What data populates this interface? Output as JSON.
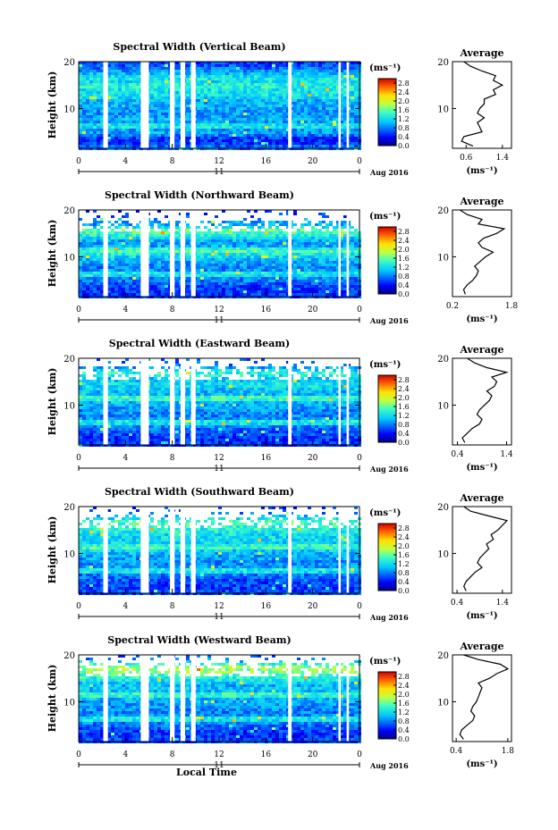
{
  "chart_data": [
    {
      "type": "heatmap",
      "title": "Spectral Width (Vertical Beam)",
      "ylabel": "Height (km)",
      "xticks": [
        "0",
        "4",
        "8",
        "12",
        "16",
        "20",
        "0"
      ],
      "yticks": [
        "20",
        "10"
      ],
      "date_day": "11",
      "date_label": "Aug 2016",
      "colorbar": {
        "unit": "(ms⁻¹)",
        "ticks": [
          "2.8",
          "2.4",
          "2.0",
          "1.6",
          "1.2",
          "0.8",
          "0.4",
          "0.0"
        ],
        "range": [
          0.0,
          3.0
        ]
      },
      "xlim": [
        0,
        24
      ],
      "ylim": [
        1.5,
        20
      ],
      "data_gaps_hours": [
        [
          2.1,
          2.5
        ],
        [
          5.3,
          6.0
        ],
        [
          7.8,
          8.2
        ],
        [
          8.7,
          9.1
        ],
        [
          9.6,
          10.0
        ],
        [
          17.9,
          18.2
        ],
        [
          22.2,
          22.4
        ],
        [
          22.9,
          23.1
        ]
      ],
      "profile": {
        "title": "Average",
        "xlabel": "(ms⁻¹)",
        "xticks": [
          "0.6",
          "1.4"
        ],
        "xlim": [
          0.3,
          1.6
        ],
        "yticks": [
          "20",
          "10"
        ],
        "heights": [
          2,
          3,
          4,
          5,
          6,
          7,
          8,
          9,
          10,
          11,
          12,
          13,
          14,
          15,
          16,
          17,
          18,
          19,
          20
        ],
        "values": [
          0.75,
          0.5,
          0.55,
          0.95,
          0.9,
          0.85,
          1.0,
          0.85,
          0.9,
          1.0,
          1.0,
          1.25,
          1.2,
          1.4,
          1.2,
          1.25,
          0.95,
          0.7,
          0.55
        ]
      }
    },
    {
      "type": "heatmap",
      "title": "Spectral Width (Northward Beam)",
      "ylabel": "Height (km)",
      "xticks": [
        "0",
        "4",
        "8",
        "12",
        "16",
        "20",
        "0"
      ],
      "yticks": [
        "20",
        "10"
      ],
      "date_day": "11",
      "date_label": "Aug 2016",
      "colorbar": {
        "unit": "(ms⁻¹)",
        "ticks": [
          "2.8",
          "2.4",
          "2.0",
          "1.6",
          "1.2",
          "0.8",
          "0.4",
          "0.0"
        ],
        "range": [
          0.0,
          3.0
        ]
      },
      "xlim": [
        0,
        24
      ],
      "ylim": [
        1.5,
        20
      ],
      "data_gaps_hours": [
        [
          2.1,
          2.5
        ],
        [
          5.3,
          6.0
        ],
        [
          7.8,
          8.2
        ],
        [
          8.7,
          9.1
        ],
        [
          9.6,
          10.0
        ],
        [
          17.9,
          18.2
        ],
        [
          22.2,
          22.4
        ],
        [
          22.9,
          23.1
        ]
      ],
      "profile": {
        "title": "Average",
        "xlabel": "(ms⁻¹)",
        "xticks": [
          "0.2",
          "1.8"
        ],
        "xlim": [
          0.2,
          1.8
        ],
        "yticks": [
          "20",
          "10"
        ],
        "heights": [
          2,
          3,
          4,
          5,
          6,
          7,
          8,
          9,
          10,
          11,
          12,
          13,
          14,
          15,
          16,
          17,
          18,
          19,
          20
        ],
        "values": [
          0.55,
          0.5,
          0.6,
          0.75,
          0.85,
          0.9,
          0.8,
          0.95,
          1.1,
          1.3,
          1.0,
          0.9,
          1.05,
          1.4,
          1.6,
          0.9,
          1.0,
          0.6,
          0.4
        ]
      }
    },
    {
      "type": "heatmap",
      "title": "Spectral Width (Eastward Beam)",
      "ylabel": "Height (km)",
      "xticks": [
        "0",
        "4",
        "8",
        "12",
        "16",
        "20",
        "0"
      ],
      "yticks": [
        "20",
        "10"
      ],
      "date_day": "11",
      "date_label": "Aug 2016",
      "colorbar": {
        "unit": "(ms⁻¹)",
        "ticks": [
          "2.8",
          "2.4",
          "2.0",
          "1.6",
          "1.2",
          "0.8",
          "0.4",
          "0.0"
        ],
        "range": [
          0.0,
          3.0
        ]
      },
      "xlim": [
        0,
        24
      ],
      "ylim": [
        1.5,
        20
      ],
      "data_gaps_hours": [
        [
          2.1,
          2.5
        ],
        [
          5.3,
          6.0
        ],
        [
          7.8,
          8.2
        ],
        [
          8.7,
          9.1
        ],
        [
          9.6,
          10.0
        ],
        [
          17.9,
          18.2
        ],
        [
          22.2,
          22.4
        ],
        [
          22.9,
          23.1
        ]
      ],
      "profile": {
        "title": "Average",
        "xlabel": "(ms⁻¹)",
        "xticks": [
          "0.4",
          "1.4"
        ],
        "xlim": [
          0.3,
          1.5
        ],
        "yticks": [
          "20",
          "10"
        ],
        "heights": [
          2,
          3,
          4,
          5,
          6,
          7,
          8,
          9,
          10,
          11,
          12,
          13,
          14,
          15,
          16,
          17,
          18,
          19,
          20
        ],
        "values": [
          0.55,
          0.5,
          0.6,
          0.7,
          0.85,
          0.9,
          0.8,
          0.85,
          0.95,
          1.05,
          1.1,
          1.0,
          1.15,
          1.2,
          1.1,
          1.4,
          1.0,
          0.75,
          0.6
        ]
      }
    },
    {
      "type": "heatmap",
      "title": "Spectral Width (Southward Beam)",
      "ylabel": "Height (km)",
      "xticks": [
        "0",
        "4",
        "8",
        "12",
        "16",
        "20",
        "0"
      ],
      "yticks": [
        "20",
        "10"
      ],
      "date_day": "11",
      "date_label": "Aug 2016",
      "colorbar": {
        "unit": "(ms⁻¹)",
        "ticks": [
          "2.8",
          "2.4",
          "2.0",
          "1.6",
          "1.2",
          "0.8",
          "0.4",
          "0.0"
        ],
        "range": [
          0.0,
          3.0
        ]
      },
      "xlim": [
        0,
        24
      ],
      "ylim": [
        1.5,
        20
      ],
      "data_gaps_hours": [
        [
          2.1,
          2.5
        ],
        [
          5.3,
          6.0
        ],
        [
          7.8,
          8.2
        ],
        [
          8.7,
          9.1
        ],
        [
          9.6,
          10.0
        ],
        [
          17.9,
          18.2
        ],
        [
          22.2,
          22.4
        ],
        [
          22.9,
          23.1
        ]
      ],
      "profile": {
        "title": "Average",
        "xlabel": "(ms⁻¹)",
        "xticks": [
          "0.4",
          "1.4"
        ],
        "xlim": [
          0.3,
          1.6
        ],
        "yticks": [
          "20",
          "10"
        ],
        "heights": [
          2,
          3,
          4,
          5,
          6,
          7,
          8,
          9,
          10,
          11,
          12,
          13,
          14,
          15,
          16,
          17,
          18,
          19,
          20
        ],
        "values": [
          0.6,
          0.55,
          0.6,
          0.7,
          0.8,
          0.95,
          0.85,
          0.9,
          1.0,
          1.1,
          1.05,
          1.2,
          1.15,
          1.3,
          1.4,
          1.5,
          1.1,
          0.7,
          0.55
        ]
      }
    },
    {
      "type": "heatmap",
      "title": "Spectral Width (Westward Beam)",
      "ylabel": "Height (km)",
      "xticks": [
        "0",
        "4",
        "8",
        "12",
        "16",
        "20",
        "0"
      ],
      "yticks": [
        "20",
        "10"
      ],
      "date_day": "11",
      "date_label": "Aug 2016",
      "xlabel": "Local Time",
      "colorbar": {
        "unit": "(ms⁻¹)",
        "ticks": [
          "2.8",
          "2.4",
          "2.0",
          "1.6",
          "1.2",
          "0.8",
          "0.4",
          "0.0"
        ],
        "range": [
          0.0,
          3.0
        ]
      },
      "xlim": [
        0,
        24
      ],
      "ylim": [
        1.5,
        20
      ],
      "data_gaps_hours": [
        [
          2.1,
          2.5
        ],
        [
          5.3,
          6.0
        ],
        [
          7.8,
          8.2
        ],
        [
          8.7,
          9.1
        ],
        [
          9.6,
          10.0
        ],
        [
          17.9,
          18.2
        ],
        [
          22.2,
          22.4
        ],
        [
          22.9,
          23.1
        ]
      ],
      "profile": {
        "title": "Average",
        "xlabel": "(ms⁻¹)",
        "xticks": [
          "0.4",
          "1.8"
        ],
        "xlim": [
          0.3,
          1.9
        ],
        "yticks": [
          "20",
          "10"
        ],
        "heights": [
          2,
          3,
          4,
          5,
          6,
          7,
          8,
          9,
          10,
          11,
          12,
          13,
          14,
          15,
          16,
          17,
          18,
          19,
          20
        ],
        "values": [
          0.6,
          0.5,
          0.55,
          0.7,
          0.85,
          0.9,
          0.8,
          0.85,
          0.95,
          1.0,
          1.05,
          1.1,
          1.0,
          1.3,
          1.5,
          1.8,
          1.6,
          1.0,
          0.6
        ]
      }
    }
  ]
}
